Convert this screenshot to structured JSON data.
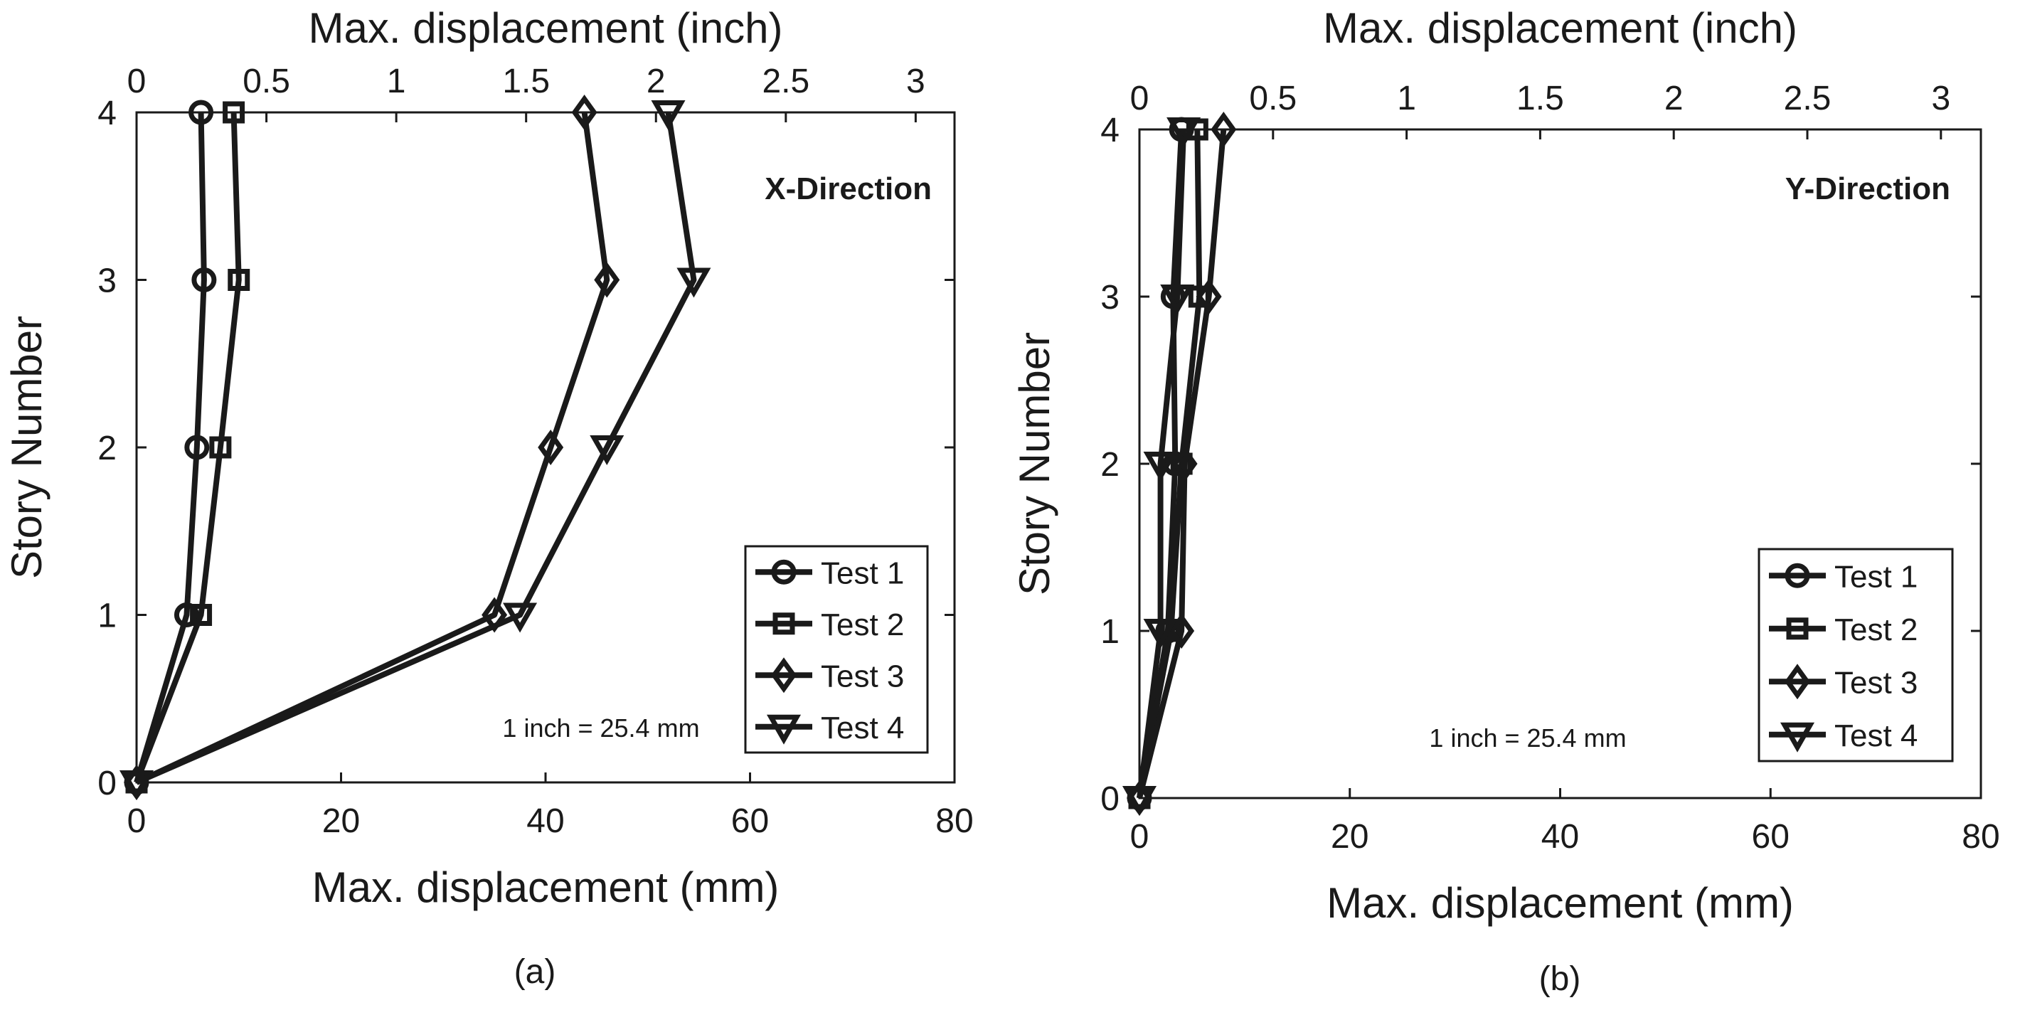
{
  "chart_data": [
    {
      "type": "line",
      "panel_label": "(a)",
      "direction_label": "X-Direction",
      "xlabel_bottom": "Max. displacement (mm)",
      "xlabel_top": "Max. displacement (inch)",
      "ylabel": "Story Number",
      "note": "1 inch = 25.4 mm",
      "xlim_mm": [
        0,
        80
      ],
      "xlim_inch": [
        0,
        3
      ],
      "ylim": [
        0,
        4
      ],
      "xticks_bottom": [
        "0",
        "20",
        "40",
        "60",
        "80"
      ],
      "xticks_top": [
        "0",
        "0.5",
        "1",
        "1.5",
        "2",
        "2.5",
        "3"
      ],
      "yticks": [
        "0",
        "1",
        "2",
        "3",
        "4"
      ],
      "legend_position": "lower-right",
      "y": [
        0,
        1,
        2,
        3,
        4
      ],
      "series": [
        {
          "name": "Test 1",
          "marker": "circle",
          "x_mm": [
            0,
            4.9,
            5.9,
            6.6,
            6.3
          ]
        },
        {
          "name": "Test 2",
          "marker": "square",
          "x_mm": [
            0,
            6.3,
            8.2,
            10.0,
            9.5
          ]
        },
        {
          "name": "Test 3",
          "marker": "diamond",
          "x_mm": [
            0,
            35.0,
            40.5,
            46.0,
            43.8
          ]
        },
        {
          "name": "Test 4",
          "marker": "triangle-down",
          "x_mm": [
            0,
            37.5,
            46.0,
            54.5,
            52.0
          ]
        }
      ]
    },
    {
      "type": "line",
      "panel_label": "(b)",
      "direction_label": "Y-Direction",
      "xlabel_bottom": "Max. displacement (mm)",
      "xlabel_top": "Max. displacement (inch)",
      "ylabel": "Story Number",
      "note": "1 inch = 25.4 mm",
      "xlim_mm": [
        0,
        80
      ],
      "xlim_inch": [
        0,
        3
      ],
      "ylim": [
        0,
        4
      ],
      "xticks_bottom": [
        "0",
        "20",
        "40",
        "60",
        "80"
      ],
      "xticks_top": [
        "0",
        "0.5",
        "1",
        "1.5",
        "2",
        "2.5",
        "3"
      ],
      "yticks": [
        "0",
        "1",
        "2",
        "3",
        "4"
      ],
      "legend_position": "lower-right",
      "y": [
        0,
        1,
        2,
        3,
        4
      ],
      "series": [
        {
          "name": "Test 1",
          "marker": "circle",
          "x_mm": [
            0,
            2.7,
            3.4,
            3.2,
            4.0
          ]
        },
        {
          "name": "Test 2",
          "marker": "square",
          "x_mm": [
            0,
            3.0,
            4.0,
            5.7,
            5.5
          ]
        },
        {
          "name": "Test 3",
          "marker": "diamond",
          "x_mm": [
            0,
            4.0,
            4.3,
            6.6,
            8.0
          ]
        },
        {
          "name": "Test 4",
          "marker": "triangle-down",
          "x_mm": [
            0,
            2.0,
            2.0,
            3.6,
            4.2
          ]
        }
      ]
    }
  ]
}
